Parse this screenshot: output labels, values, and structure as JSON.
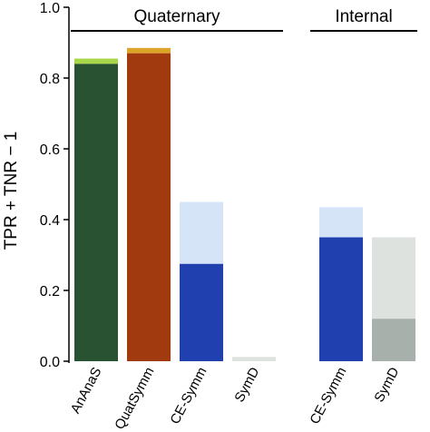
{
  "chart_data": {
    "type": "bar",
    "ylabel": "TPR + TNR − 1",
    "ylim": [
      0,
      1.0
    ],
    "yticks": [
      "0.0",
      "0.2",
      "0.4",
      "0.6",
      "0.8",
      "1.0"
    ],
    "ytick_values": [
      0,
      0.2,
      0.4,
      0.6,
      0.8,
      1.0
    ],
    "grid": false,
    "groups": [
      {
        "label": "Quaternary",
        "categories": [
          "AnAnaS",
          "QuatSymm",
          "CE-Symm",
          "SymD"
        ]
      },
      {
        "label": "Internal",
        "categories": [
          "CE-Symm",
          "SymD"
        ]
      }
    ],
    "bars": [
      {
        "group": "Quaternary",
        "category": "AnAnaS",
        "value": 0.84,
        "upper": 0.855,
        "color": "#285232",
        "upper_color": "#a8d84a"
      },
      {
        "group": "Quaternary",
        "category": "QuatSymm",
        "value": 0.87,
        "upper": 0.885,
        "color": "#a23a10",
        "upper_color": "#dca428"
      },
      {
        "group": "Quaternary",
        "category": "CE-Symm",
        "value": 0.275,
        "upper": 0.45,
        "color": "#2040b0",
        "upper_color": "#d6e4f8"
      },
      {
        "group": "Quaternary",
        "category": "SymD",
        "value": 0.0,
        "upper": 0.012,
        "color": "#a8b0ac",
        "upper_color": "#dde2df"
      },
      {
        "group": "Internal",
        "category": "CE-Symm",
        "value": 0.35,
        "upper": 0.435,
        "color": "#2040b0",
        "upper_color": "#d6e4f8"
      },
      {
        "group": "Internal",
        "category": "SymD",
        "value": 0.12,
        "upper": 0.35,
        "color": "#a8b0ac",
        "upper_color": "#dde2df"
      }
    ]
  }
}
